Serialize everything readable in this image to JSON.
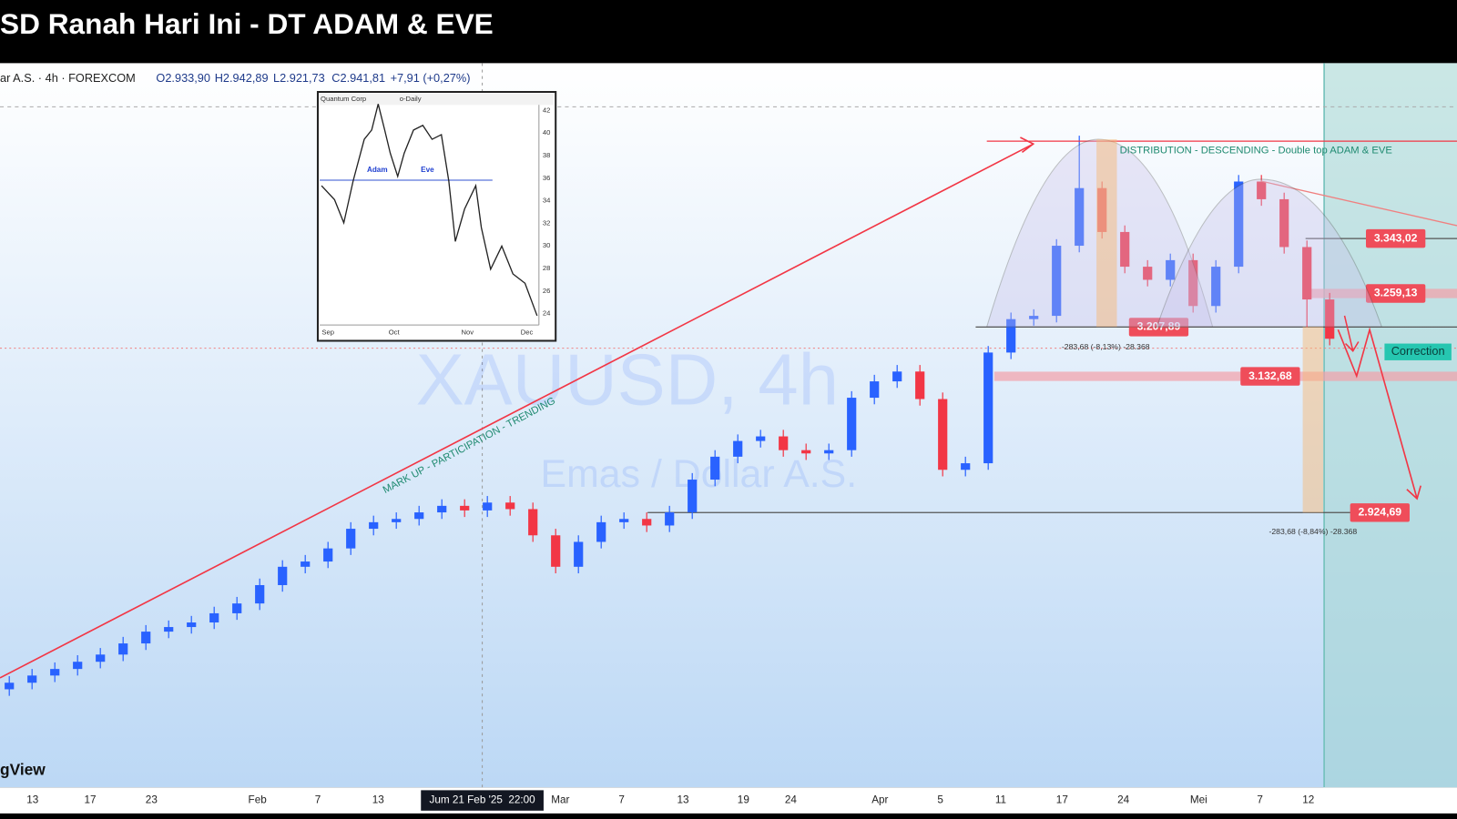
{
  "header": {
    "title": "SD Ranah Hari Ini - DT ADAM & EVE"
  },
  "legend": {
    "symbol": "ar A.S. · 4h · FOREXCOM",
    "open": "O2.933,90",
    "high": "H2.942,89",
    "low": "L2.921,73",
    "close": "C2.941,81",
    "change": "+7,91 (+0,27%)"
  },
  "branding": "gView",
  "chart_data": {
    "type": "candlestick",
    "watermark": "XAUUSD, 4h",
    "watermark_sub": "Emas / Dollar A.S.",
    "ylim": [
      2620,
      3520
    ],
    "up_color": "#2962ff",
    "down_color": "#f23645",
    "open": [
      2655,
      2665,
      2676,
      2686,
      2697,
      2708,
      2725,
      2743,
      2750,
      2757,
      2771,
      2786,
      2814,
      2842,
      2850,
      2870,
      2900,
      2910,
      2915,
      2925,
      2935,
      2928,
      2940,
      2930,
      2890,
      2842,
      2880,
      2910,
      2915,
      2905,
      2925,
      2975,
      3010,
      3034,
      3041,
      3020,
      3015,
      3020,
      3100,
      3125,
      3140,
      3098,
      2990,
      3000,
      3169,
      3220,
      3225,
      3332,
      3420,
      3353,
      3300,
      3280,
      3310,
      3240,
      3300,
      3430,
      3403,
      3330,
      3250
    ],
    "high": [
      2675,
      2686,
      2696,
      2707,
      2718,
      2735,
      2753,
      2760,
      2767,
      2781,
      2796,
      2824,
      2852,
      2860,
      2880,
      2910,
      2920,
      2925,
      2935,
      2945,
      2945,
      2950,
      2950,
      2940,
      2900,
      2890,
      2920,
      2925,
      2925,
      2935,
      2985,
      3020,
      3044,
      3051,
      3051,
      3030,
      3030,
      3110,
      3135,
      3150,
      3150,
      3108,
      3010,
      3179,
      3230,
      3235,
      3342,
      3500,
      3430,
      3363,
      3310,
      3320,
      3320,
      3310,
      3440,
      3440,
      3413,
      3340,
      3260
    ],
    "low": [
      2645,
      2655,
      2666,
      2676,
      2687,
      2698,
      2715,
      2733,
      2740,
      2747,
      2761,
      2776,
      2804,
      2832,
      2840,
      2860,
      2890,
      2900,
      2905,
      2915,
      2918,
      2918,
      2920,
      2880,
      2832,
      2832,
      2870,
      2900,
      2895,
      2895,
      2915,
      2965,
      3000,
      3024,
      3010,
      3005,
      3005,
      3010,
      3090,
      3115,
      3088,
      2980,
      2980,
      2990,
      3159,
      3210,
      3215,
      3322,
      3343,
      3290,
      3270,
      3270,
      3230,
      3230,
      3290,
      3393,
      3320,
      3207,
      3180
    ],
    "close": [
      2665,
      2676,
      2686,
      2697,
      2708,
      2725,
      2743,
      2750,
      2757,
      2771,
      2786,
      2814,
      2842,
      2850,
      2870,
      2900,
      2910,
      2915,
      2925,
      2935,
      2928,
      2940,
      2930,
      2890,
      2842,
      2880,
      2910,
      2915,
      2905,
      2925,
      2975,
      3010,
      3034,
      3041,
      3020,
      3015,
      3020,
      3100,
      3125,
      3140,
      3098,
      2990,
      3000,
      3169,
      3220,
      3225,
      3332,
      3420,
      3353,
      3300,
      3280,
      3310,
      3240,
      3300,
      3430,
      3403,
      3330,
      3250,
      3190
    ],
    "x_labels": [
      "13",
      "17",
      "23",
      "Feb",
      "7",
      "13",
      "Mar",
      "7",
      "13",
      "19",
      "24",
      "Apr",
      "5",
      "11",
      "17",
      "24",
      "Mei",
      "7",
      "12"
    ],
    "crosshair_label": "Jum 21 Feb '25  22:00",
    "levels": [
      {
        "value": 3343.02,
        "label": "3.343,02"
      },
      {
        "value": 3259.13,
        "label": "3.259,13"
      },
      {
        "value": 3207.89,
        "label": "3.207,89"
      },
      {
        "value": 3132.68,
        "label": "3.132,68"
      },
      {
        "value": 2924.69,
        "label": "2.924,69"
      }
    ],
    "annotations": {
      "markup": "MARK UP - PARTICIPATION - TRENDING",
      "distribution": "DISTRIBUTION - DESCENDING - Double top ADAM & EVE",
      "correction": "Correction",
      "measure_1": "-283,68 (-8,13%) -28.368",
      "measure_2": "-283,68 (-8,84%) -28.368"
    }
  },
  "inset": {
    "title": "Quantum Corp",
    "period": "o-Daily",
    "adam": "Adam",
    "eve": "Eve",
    "months": [
      "Sep",
      "Oct",
      "Nov",
      "Dec"
    ],
    "ticks": [
      42,
      40,
      38,
      36,
      34,
      32,
      30,
      28,
      26,
      24
    ]
  }
}
